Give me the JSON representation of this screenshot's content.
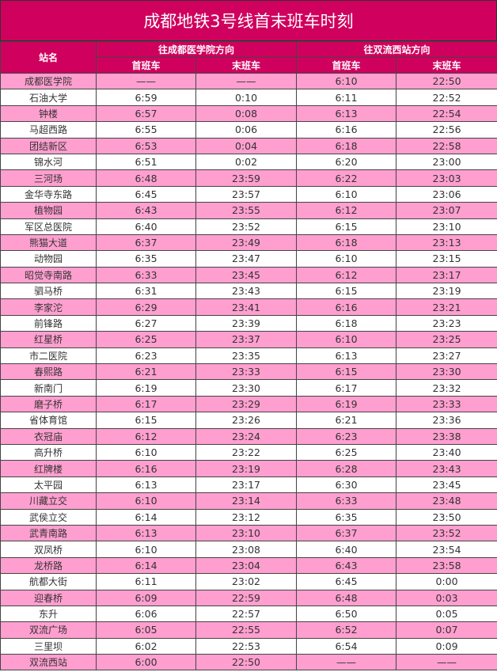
{
  "title": "成都地铁3号线首末班车时刻",
  "header": {
    "station": "站名",
    "dir1": "往成都医学院方向",
    "dir2": "往双流西站方向",
    "first": "首班车",
    "last": "末班车"
  },
  "colors": {
    "header_bg": "#d0005e",
    "pink_row": "#ff9fcf",
    "white_row": "#ffffff"
  },
  "rows": [
    [
      "成都医学院",
      "——",
      "——",
      "6:10",
      "22:50"
    ],
    [
      "石油大学",
      "6:59",
      "0:10",
      "6:11",
      "22:52"
    ],
    [
      "钟楼",
      "6:57",
      "0:08",
      "6:13",
      "22:54"
    ],
    [
      "马超西路",
      "6:55",
      "0:06",
      "6:16",
      "22:56"
    ],
    [
      "团结新区",
      "6:53",
      "0:04",
      "6:18",
      "22:58"
    ],
    [
      "锦水河",
      "6:51",
      "0:02",
      "6:20",
      "23:00"
    ],
    [
      "三河场",
      "6:48",
      "23:59",
      "6:22",
      "23:03"
    ],
    [
      "金华寺东路",
      "6:45",
      "23:57",
      "6:10",
      "23:06"
    ],
    [
      "植物园",
      "6:43",
      "23:55",
      "6:12",
      "23:07"
    ],
    [
      "军区总医院",
      "6:40",
      "23:52",
      "6:15",
      "23:10"
    ],
    [
      "熊猫大道",
      "6:37",
      "23:49",
      "6:18",
      "23:13"
    ],
    [
      "动物园",
      "6:35",
      "23:47",
      "6:10",
      "23:15"
    ],
    [
      "昭觉寺南路",
      "6:33",
      "23:45",
      "6:12",
      "23:17"
    ],
    [
      "驷马桥",
      "6:31",
      "23:43",
      "6:15",
      "23:19"
    ],
    [
      "李家沱",
      "6:29",
      "23:41",
      "6:16",
      "23:21"
    ],
    [
      "前锋路",
      "6:27",
      "23:39",
      "6:18",
      "23:23"
    ],
    [
      "红星桥",
      "6:25",
      "23:37",
      "6:10",
      "23:25"
    ],
    [
      "市二医院",
      "6:23",
      "23:35",
      "6:13",
      "23:27"
    ],
    [
      "春熙路",
      "6:21",
      "23:33",
      "6:15",
      "23:30"
    ],
    [
      "新南门",
      "6:19",
      "23:30",
      "6:17",
      "23:32"
    ],
    [
      "磨子桥",
      "6:17",
      "23:29",
      "6:19",
      "23:33"
    ],
    [
      "省体育馆",
      "6:15",
      "23:26",
      "6:21",
      "23:36"
    ],
    [
      "衣冠庙",
      "6:12",
      "23:24",
      "6:23",
      "23:38"
    ],
    [
      "高升桥",
      "6:10",
      "23:22",
      "6:25",
      "23:40"
    ],
    [
      "红牌楼",
      "6:16",
      "23:19",
      "6:28",
      "23:43"
    ],
    [
      "太平园",
      "6:13",
      "23:17",
      "6:30",
      "23:45"
    ],
    [
      "川藏立交",
      "6:10",
      "23:14",
      "6:33",
      "23:48"
    ],
    [
      "武侯立交",
      "6:14",
      "23:12",
      "6:35",
      "23:50"
    ],
    [
      "武青南路",
      "6:13",
      "23:10",
      "6:37",
      "23:52"
    ],
    [
      "双凤桥",
      "6:10",
      "23:08",
      "6:40",
      "23:54"
    ],
    [
      "龙桥路",
      "6:14",
      "23:04",
      "6:43",
      "23:58"
    ],
    [
      "航都大街",
      "6:11",
      "23:02",
      "6:45",
      "0:00"
    ],
    [
      "迎春桥",
      "6:09",
      "22:59",
      "6:48",
      "0:03"
    ],
    [
      "东升",
      "6:06",
      "22:57",
      "6:50",
      "0:05"
    ],
    [
      "双流广场",
      "6:05",
      "22:55",
      "6:52",
      "0:07"
    ],
    [
      "三里坝",
      "6:02",
      "22:53",
      "6:54",
      "0:09"
    ],
    [
      "双流西站",
      "6:00",
      "22:50",
      "——",
      "——"
    ]
  ]
}
